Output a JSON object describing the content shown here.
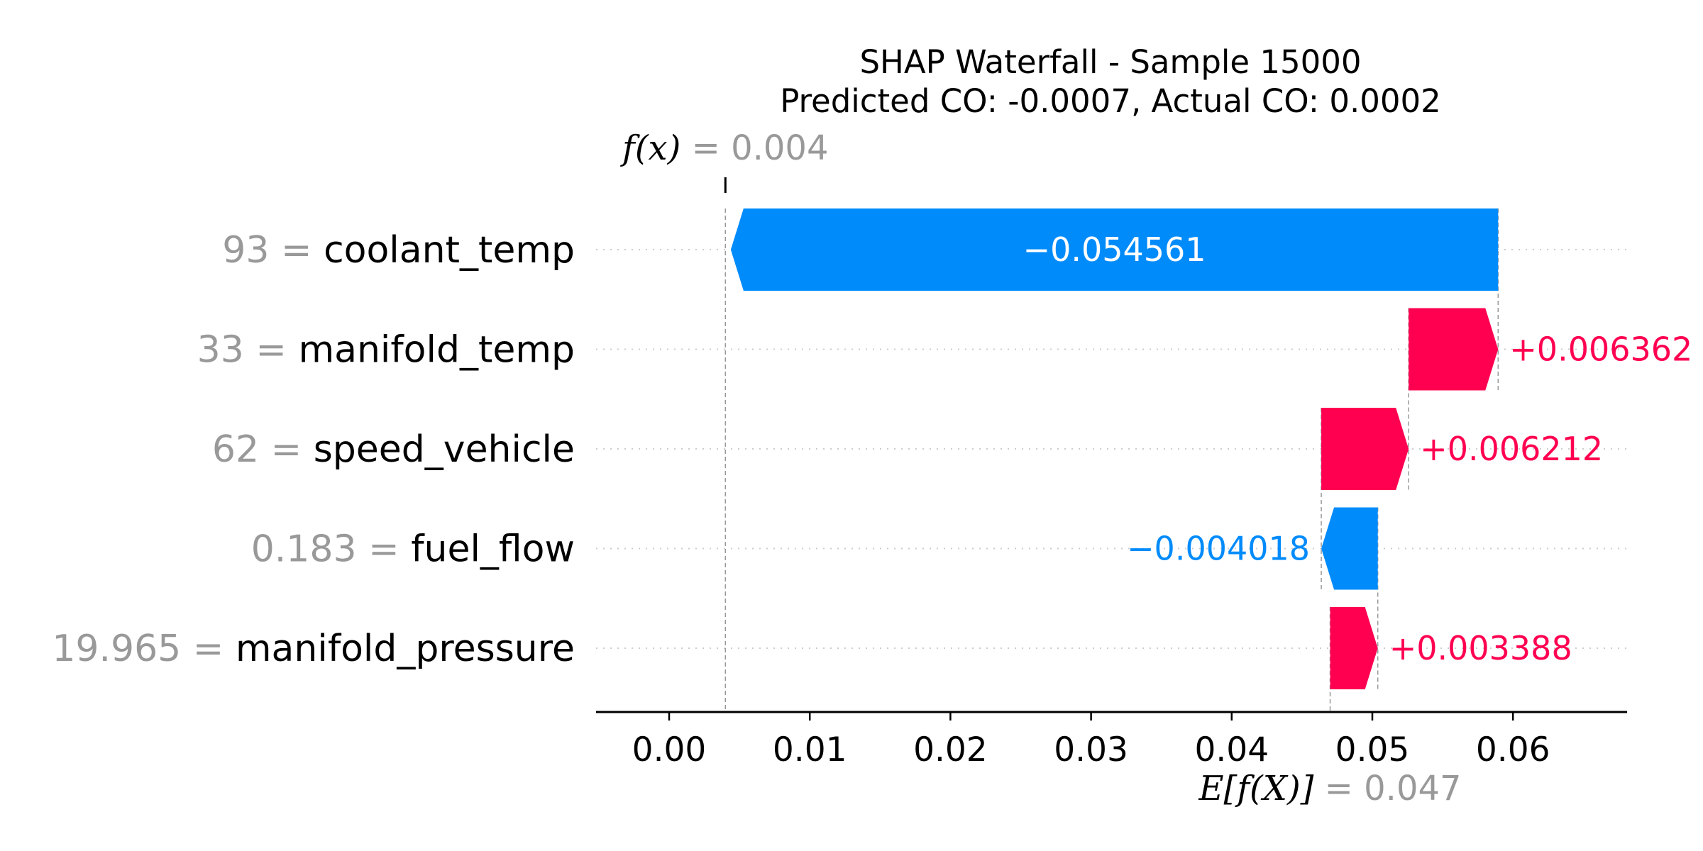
{
  "chart_data": {
    "type": "waterfall",
    "title": "SHAP Waterfall - Sample 15000",
    "subtitle": "Predicted CO: -0.0007, Actual CO: 0.0002",
    "base_value": 0.047,
    "base_value_label": "0.047",
    "output_value": 0.004,
    "output_value_label": "0.004",
    "fx_symbol": "f(x)",
    "efx_symbol": "E[f(X)]",
    "features": [
      {
        "name": "coolant_temp",
        "value_label": "93",
        "shap": -0.054561,
        "label": "−0.054561"
      },
      {
        "name": "manifold_temp",
        "value_label": "33",
        "shap": 0.006362,
        "label": "+0.006362"
      },
      {
        "name": "speed_vehicle",
        "value_label": "62",
        "shap": 0.006212,
        "label": "+0.006212"
      },
      {
        "name": "fuel_flow",
        "value_label": "0.183",
        "shap": -0.004018,
        "label": "−0.004018"
      },
      {
        "name": "manifold_pressure",
        "value_label": "19.965",
        "shap": 0.003388,
        "label": "+0.003388"
      }
    ],
    "xticks": [
      0.0,
      0.01,
      0.02,
      0.03,
      0.04,
      0.05,
      0.06
    ],
    "xtick_labels": [
      "0.00",
      "0.01",
      "0.02",
      "0.03",
      "0.04",
      "0.05",
      "0.06"
    ],
    "xlim": [
      -0.0052,
      0.068
    ],
    "colors": {
      "positive": "#ff0051",
      "negative": "#008bfb",
      "muted": "#999999",
      "axis": "#000000",
      "grid": "#cccccc"
    }
  }
}
